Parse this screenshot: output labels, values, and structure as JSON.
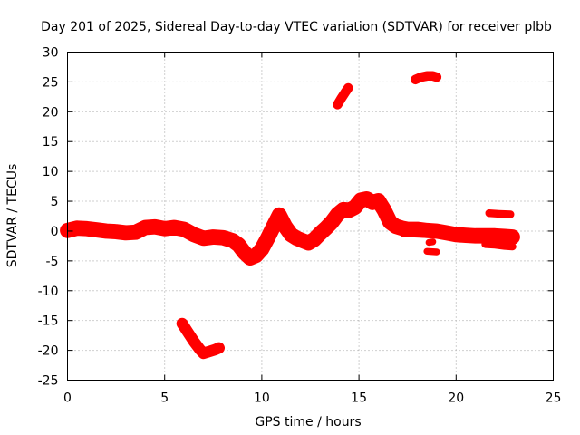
{
  "chart_data": {
    "type": "line",
    "title": "Day 201 of 2025, Sidereal Day-to-day VTEC variation (SDTVAR) for receiver plbb",
    "xlabel": "GPS time / hours",
    "ylabel": "SDTVAR / TECUs",
    "xlim": [
      0,
      25
    ],
    "ylim": [
      -25,
      30
    ],
    "xticks": [
      0,
      5,
      10,
      15,
      20,
      25
    ],
    "yticks": [
      -25,
      -20,
      -15,
      -10,
      -5,
      0,
      5,
      10,
      15,
      20,
      25,
      30
    ],
    "xtick_labels": [
      "0",
      "5",
      "10",
      "15",
      "20",
      "25"
    ],
    "ytick_labels": [
      "-25",
      "-20",
      "-15",
      "-10",
      "-5",
      "0",
      "5",
      "10",
      "15",
      "20",
      "25",
      "30"
    ],
    "grid": true,
    "color": "#ff0000",
    "series": [
      {
        "name": "main",
        "band": 1.6,
        "x": [
          0,
          0.5,
          1,
          1.5,
          2,
          2.5,
          3,
          3.5,
          4,
          4.5,
          5,
          5.5,
          6,
          6.5,
          7,
          7.5,
          8,
          8.5,
          8.8,
          9.1,
          9.4,
          9.7,
          10,
          10.3,
          10.6,
          10.9,
          11.2,
          11.5,
          11.8,
          12.1,
          12.4,
          12.7,
          13,
          13.3,
          13.6,
          13.9,
          14.2,
          14.5,
          14.8,
          15.1,
          15.4,
          15.7,
          16,
          16.3,
          16.6,
          16.9,
          17.2,
          17.5,
          18,
          18.5,
          19,
          19.5,
          20,
          20.5,
          21,
          21.5,
          22,
          22.5,
          22.9
        ],
        "y": [
          0.1,
          0.5,
          0.4,
          0.2,
          0,
          -0.1,
          -0.3,
          -0.2,
          0.6,
          0.7,
          0.4,
          0.6,
          0.3,
          -0.6,
          -1.2,
          -1,
          -1.1,
          -1.6,
          -2.3,
          -3.6,
          -4.5,
          -4.1,
          -3,
          -1.2,
          0.8,
          2.7,
          0.8,
          -0.6,
          -1.2,
          -1.6,
          -2,
          -1.4,
          -0.4,
          0.5,
          1.5,
          2.8,
          3.6,
          3.5,
          4,
          5.2,
          5.4,
          4.8,
          5.1,
          3.5,
          1.5,
          0.8,
          0.5,
          0.3,
          0.3,
          0.1,
          0,
          -0.3,
          -0.6,
          -0.7,
          -0.8,
          -0.8,
          -0.8,
          -0.9,
          -1
        ]
      },
      {
        "name": "lower-branch-left",
        "band": 1.2,
        "x": [
          5.9,
          6.2,
          6.5,
          6.8,
          7.0,
          7.3,
          7.6,
          7.8
        ],
        "y": [
          -15.5,
          -17,
          -18.5,
          -19.8,
          -20.5,
          -20.2,
          -19.9,
          -19.6
        ]
      },
      {
        "name": "lower-branch-right",
        "band": 1.0,
        "x": [
          17.3,
          18.0,
          18.7,
          19.2,
          19.7,
          20.2,
          20.8
        ],
        "y": [
          -0.2,
          -0.3,
          -0.4,
          -0.5,
          -0.6,
          -0.6,
          -0.6
        ]
      },
      {
        "name": "upper-segment-14h",
        "band": 1.0,
        "x": [
          13.9,
          14.1,
          14.3,
          14.45
        ],
        "y": [
          21.2,
          22.3,
          23.3,
          24
        ]
      },
      {
        "name": "upper-segment-18h",
        "band": 1.0,
        "x": [
          17.9,
          18.2,
          18.5,
          18.8,
          19.0
        ],
        "y": [
          25.4,
          25.8,
          26.0,
          26.0,
          25.8
        ]
      },
      {
        "name": "segment-22h-upper",
        "band": 0.8,
        "x": [
          21.7,
          22.2,
          22.8
        ],
        "y": [
          3.0,
          2.9,
          2.8
        ]
      },
      {
        "name": "segment-22h-lower",
        "band": 0.8,
        "x": [
          21.5,
          22.0,
          22.5,
          22.9
        ],
        "y": [
          -2.2,
          -2.3,
          -2.5,
          -2.6
        ]
      },
      {
        "name": "segment-18.6h-a",
        "band": 0.7,
        "x": [
          18.5,
          19.0
        ],
        "y": [
          -3.4,
          -3.5
        ]
      },
      {
        "name": "segment-18.6h-b",
        "band": 0.7,
        "x": [
          18.6,
          18.8
        ],
        "y": [
          -1.9,
          -1.8
        ]
      }
    ]
  }
}
